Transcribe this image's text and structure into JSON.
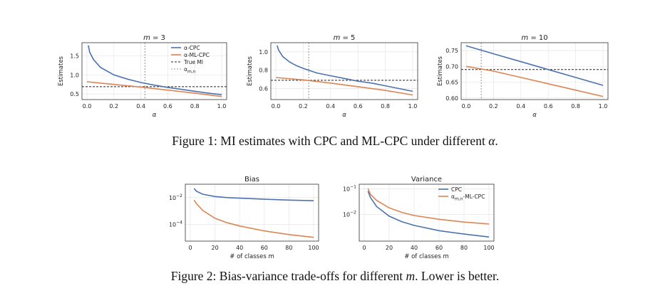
{
  "figure1": {
    "caption_text": "Figure 1: MI estimates with CPC and ML-CPC under different ",
    "caption_symbol": "α",
    "caption_end": "."
  },
  "figure2": {
    "caption_text": "Figure 2: Bias-variance trade-offs for different ",
    "caption_symbol": "m",
    "caption_end": ". Lower is better."
  },
  "colors": {
    "cpc": "#4c72b0",
    "mlcpc": "#dd8452",
    "true_mi": "#222222",
    "alpha_line": "#777777",
    "frame": "#333333",
    "grid": "#e6e6e6"
  },
  "chart_data": [
    {
      "type": "line",
      "title": "m = 3",
      "xlabel": "α",
      "ylabel": "Estimates",
      "xlim": [
        0.0,
        1.0
      ],
      "ylim": [
        0.35,
        1.85
      ],
      "xticks": [
        "0.0",
        "0.2",
        "0.4",
        "0.6",
        "0.8",
        "1.0"
      ],
      "yticks": [
        "0.5",
        "1.0",
        "1.5"
      ],
      "legend": {
        "entries": [
          "α-CPC",
          "α-ML-CPC",
          "True MI",
          "α_{m,n}"
        ],
        "placement": "top-right"
      },
      "true_mi": 0.69,
      "alpha_mn": 0.43,
      "series": [
        {
          "name": "α-CPC",
          "x": [
            0.01,
            0.02,
            0.05,
            0.1,
            0.15,
            0.2,
            0.3,
            0.4,
            0.5,
            0.6,
            0.7,
            0.8,
            0.9,
            1.0
          ],
          "y": [
            1.78,
            1.6,
            1.4,
            1.2,
            1.1,
            1.0,
            0.89,
            0.8,
            0.73,
            0.67,
            0.62,
            0.57,
            0.52,
            0.48
          ]
        },
        {
          "name": "α-ML-CPC",
          "x": [
            0.0,
            0.2,
            0.4,
            0.6,
            0.8,
            1.0
          ],
          "y": [
            0.82,
            0.75,
            0.68,
            0.6,
            0.52,
            0.43
          ]
        }
      ]
    },
    {
      "type": "line",
      "title": "m = 5",
      "xlabel": "α",
      "ylabel": "Estimates",
      "xlim": [
        0.0,
        1.0
      ],
      "ylim": [
        0.48,
        1.1
      ],
      "xticks": [
        "0.0",
        "0.2",
        "0.4",
        "0.6",
        "0.8",
        "1.0"
      ],
      "yticks": [
        "0.6",
        "0.8",
        "1.0"
      ],
      "true_mi": 0.69,
      "alpha_mn": 0.24,
      "series": [
        {
          "name": "α-CPC",
          "x": [
            0.01,
            0.02,
            0.05,
            0.1,
            0.15,
            0.2,
            0.3,
            0.4,
            0.5,
            0.6,
            0.7,
            0.8,
            0.9,
            1.0
          ],
          "y": [
            1.07,
            1.02,
            0.95,
            0.89,
            0.85,
            0.82,
            0.77,
            0.74,
            0.71,
            0.68,
            0.66,
            0.63,
            0.6,
            0.57
          ]
        },
        {
          "name": "α-ML-CPC",
          "x": [
            0.0,
            0.2,
            0.4,
            0.6,
            0.8,
            1.0
          ],
          "y": [
            0.72,
            0.695,
            0.66,
            0.62,
            0.58,
            0.53
          ]
        }
      ]
    },
    {
      "type": "line",
      "title": "m = 10",
      "xlabel": "α",
      "ylabel": "Estimates",
      "xlim": [
        0.0,
        1.0
      ],
      "ylim": [
        0.595,
        0.775
      ],
      "xticks": [
        "0.0",
        "0.2",
        "0.4",
        "0.6",
        "0.8",
        "1.0"
      ],
      "yticks": [
        "0.60",
        "0.65",
        "0.70",
        "0.75"
      ],
      "true_mi": 0.69,
      "alpha_mn": 0.11,
      "series": [
        {
          "name": "α-CPC",
          "x": [
            0.0,
            0.2,
            0.4,
            0.6,
            0.8,
            1.0
          ],
          "y": [
            0.765,
            0.74,
            0.715,
            0.69,
            0.665,
            0.64
          ]
        },
        {
          "name": "α-ML-CPC",
          "x": [
            0.0,
            0.2,
            0.4,
            0.6,
            0.8,
            1.0
          ],
          "y": [
            0.7,
            0.685,
            0.665,
            0.645,
            0.625,
            0.605
          ]
        }
      ]
    },
    {
      "type": "line",
      "title": "Bias",
      "xlabel": "# of classes m",
      "ylabel": "",
      "yscale": "log",
      "xlim": [
        0,
        100
      ],
      "ylim": [
        5.5e-06,
        0.1
      ],
      "xticks": [
        "0",
        "20",
        "40",
        "60",
        "80",
        "100"
      ],
      "ytick_values": [
        0.01,
        0.0001
      ],
      "series": [
        {
          "name": "CPC",
          "x": [
            3,
            5,
            10,
            20,
            30,
            40,
            60,
            80,
            100
          ],
          "y": [
            0.048,
            0.03,
            0.018,
            0.012,
            0.01,
            0.009,
            0.0075,
            0.0065,
            0.0058
          ]
        },
        {
          "name": "α_{m,n}-ML-CPC",
          "x": [
            3,
            5,
            10,
            20,
            30,
            40,
            60,
            80,
            100
          ],
          "y": [
            0.0065,
            0.0035,
            0.0011,
            0.00028,
            0.00013,
            7.5e-05,
            3.2e-05,
            1.7e-05,
            1.05e-05
          ]
        }
      ]
    },
    {
      "type": "line",
      "title": "Variance",
      "xlabel": "# of classes m",
      "ylabel": "",
      "yscale": "log",
      "xlim": [
        0,
        100
      ],
      "ylim": [
        0.0009,
        0.15
      ],
      "xticks": [
        "0",
        "20",
        "40",
        "60",
        "80",
        "100"
      ],
      "ytick_values": [
        0.1,
        0.01
      ],
      "legend": {
        "entries": [
          "CPC",
          "α_{m,n}-ML-CPC"
        ],
        "placement": "top-right"
      },
      "series": [
        {
          "name": "CPC",
          "x": [
            3,
            5,
            10,
            20,
            30,
            40,
            60,
            80,
            100
          ],
          "y": [
            0.08,
            0.045,
            0.02,
            0.0085,
            0.0052,
            0.0037,
            0.0023,
            0.0017,
            0.0013
          ]
        },
        {
          "name": "α_{m,n}-ML-CPC",
          "x": [
            3,
            5,
            10,
            20,
            30,
            40,
            60,
            80,
            100
          ],
          "y": [
            0.1,
            0.06,
            0.035,
            0.018,
            0.012,
            0.009,
            0.0064,
            0.005,
            0.0042
          ]
        }
      ]
    }
  ]
}
